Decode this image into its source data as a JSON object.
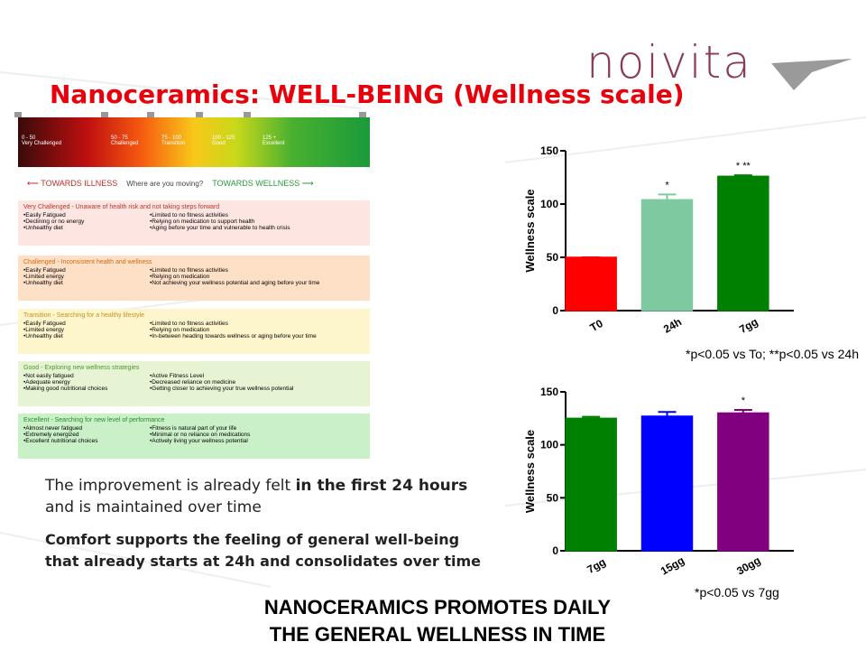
{
  "logo": "noivita",
  "title": "Nanoceramics: WELL-BEING (Wellness scale)",
  "scale": {
    "ranges": [
      {
        "range": "0 - 50",
        "label": "Very Challenged"
      },
      {
        "range": "50 - 75",
        "label": "Challenged"
      },
      {
        "range": "75 - 100",
        "label": "Transition"
      },
      {
        "range": "100 - 125",
        "label": "Good"
      },
      {
        "range": "125 +",
        "label": "Excellent"
      }
    ],
    "arrow_left": "TOWARDS ILLNESS",
    "question": "Where are you moving?",
    "arrow_right": "TOWARDS WELLNESS"
  },
  "levels": [
    {
      "heading": "Very Challenged - Unaware of health risk and not taking steps forward",
      "left": [
        "Easily Fatigued",
        "Declining or no energy",
        "Unhealthy diet"
      ],
      "right": [
        "Limited to no fitness activities",
        "Relying on medication to support health",
        "Aging before your time and vulnerable to health crisis"
      ]
    },
    {
      "heading": "Challenged - Inconsistent health and wellness",
      "left": [
        "Easily Fatigued",
        "Limited energy",
        "Unhealthy diet"
      ],
      "right": [
        "Limited to no fitness activities",
        "Relying on medication",
        "Not achieving your wellness potential and aging before your time"
      ]
    },
    {
      "heading": "Transition - Searching for a healthy lifestyle",
      "left": [
        "Easily Fatigued",
        "Limited energy",
        "Unhealthy diet"
      ],
      "right": [
        "Limited to no fitness activities",
        "Relying on medication",
        "In-between heading towards wellness or aging before your time"
      ]
    },
    {
      "heading": "Good - Exploring new wellness strategies",
      "left": [
        "Not easily fatigued",
        "Adequate energy",
        "Making good nutritional choices"
      ],
      "right": [
        "Active Fitness Level",
        "Decreased reliance on medicine",
        "Getting closer to achieving your true wellness potential"
      ]
    },
    {
      "heading": "Excellent - Searching for new level of performance",
      "left": [
        "Almost never fatigued",
        "Extremely energized",
        "Excellent nutritional choices"
      ],
      "right": [
        "Fitness is natural part of your life",
        "Minimal or no reliance on medications",
        "Actively living your wellness potential"
      ]
    }
  ],
  "body": {
    "p1": [
      "The improvement is already felt ",
      "in the first 24 hours",
      " and is maintained over time"
    ],
    "p2": "Comfort supports the feeling of general well-being that already starts at 24h and consolidates over time"
  },
  "conclusion": [
    "NANOCERAMICS PROMOTES DAILY",
    "THE GENERAL WELLNESS IN TIME"
  ],
  "chart_data": [
    {
      "type": "bar",
      "ylabel": "Wellness scale",
      "categories": [
        "T0",
        "24h",
        "7gg"
      ],
      "values": [
        50,
        104,
        126
      ],
      "errors": [
        0,
        5,
        1
      ],
      "colors": [
        "#ff0000",
        "#7fc9a0",
        "#008000"
      ],
      "annotations": [
        null,
        "*",
        "* **"
      ],
      "ylim": [
        0,
        150
      ],
      "yticks": [
        0,
        50,
        100,
        150
      ],
      "footnote": "*p<0.05 vs To; **p<0.05 vs 24h"
    },
    {
      "type": "bar",
      "ylabel": "Wellness scale",
      "categories": [
        "7gg",
        "15gg",
        "30gg"
      ],
      "values": [
        125,
        127,
        130
      ],
      "errors": [
        1.5,
        4,
        3
      ],
      "colors": [
        "#008000",
        "#0000ff",
        "#800080"
      ],
      "annotations": [
        null,
        null,
        "*"
      ],
      "ylim": [
        0,
        150
      ],
      "yticks": [
        0,
        50,
        100,
        150
      ],
      "footnote": "*p<0.05 vs 7gg"
    }
  ]
}
